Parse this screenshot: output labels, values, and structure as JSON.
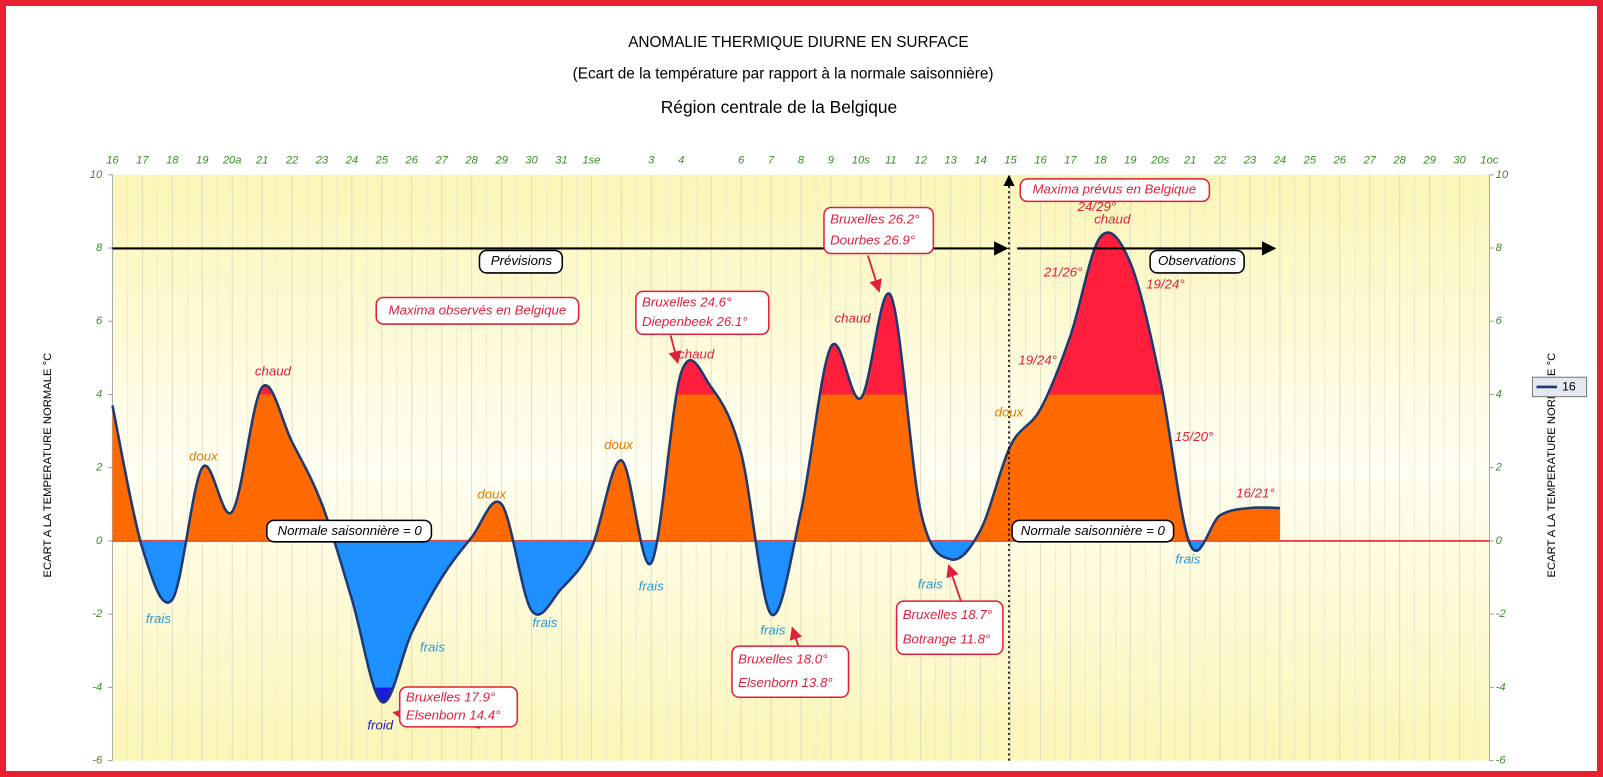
{
  "chart_data": {
    "type": "area",
    "title": "ANOMALIE THERMIQUE DIURNE EN SURFACE",
    "subtitle": "(Ecart de la température par rapport à la normale saisonnière)",
    "region": "Région centrale de la Belgique",
    "y_label": "ECART A LA TEMPERATURE NORMALE  °C",
    "y2_label": "ECART A LA TEMPERATURE NORMALE  °C",
    "categories": [
      "16",
      "17",
      "18",
      "19",
      "20a",
      "21",
      "22",
      "23",
      "24",
      "25",
      "26",
      "27",
      "28",
      "29",
      "30",
      "31",
      "1se",
      null,
      "3",
      "4",
      null,
      "6",
      "7",
      "8",
      "9",
      "10s",
      "11",
      "12",
      "13",
      "14",
      "15",
      "16",
      "17",
      "18",
      "19",
      "20s",
      "21",
      "22",
      "23",
      "24",
      "25",
      "26",
      "27",
      "28",
      "29",
      "30",
      "1oc"
    ],
    "series": [
      {
        "name": "16",
        "color": "#1f3a70",
        "values": [
          3.7,
          -0.2,
          -1.6,
          2.0,
          0.8,
          4.2,
          2.7,
          1.0,
          -1.6,
          -4.4,
          -2.5,
          -1.0,
          0.1,
          1.0,
          -1.9,
          -1.3,
          -0.2,
          2.2,
          -0.6,
          4.6,
          4.2,
          2.4,
          -2.0,
          0.8,
          5.3,
          3.9,
          6.7,
          0.8,
          -0.5,
          0.3,
          2.6,
          3.6,
          5.6,
          8.3,
          7.6,
          4.4,
          -0.1,
          0.7,
          0.9,
          0.9,
          null,
          null,
          null,
          null,
          null,
          null,
          null
        ]
      }
    ],
    "ylim": [
      -6,
      10
    ],
    "yticks": [
      -6,
      -4,
      -2,
      0,
      2,
      4,
      6,
      8,
      10
    ],
    "y2lim": [
      -6,
      10
    ],
    "y2ticks": [
      -6,
      -4,
      -2,
      0,
      2,
      4,
      6,
      8,
      10
    ],
    "zones": [
      {
        "from": -6,
        "to": -4,
        "color": "#1a1ae0"
      },
      {
        "from": -4,
        "to": 0,
        "color": "#1e90ff"
      },
      {
        "from": 0,
        "to": 4,
        "color": "#ff6a00"
      },
      {
        "from": 4,
        "to": 10,
        "color": "#ff1f3d"
      }
    ],
    "zero_line_color": "#e8202f",
    "annotations": [
      "chaud",
      "doux",
      "frais",
      "frais",
      "froid",
      "doux",
      "frais",
      "doux",
      "frais",
      "chaud",
      "frais",
      "chaud",
      "frais",
      "doux",
      "chaud",
      "frais",
      "24/29°",
      "21/26°",
      "19/24°",
      "19/24°",
      "15/20°",
      "16/21°",
      "Prévisions",
      "Observations",
      "Normale saisonnière = 0",
      "Normale saisonnière = 0",
      "Maxima observés en Belgique",
      "Maxima prévus en Belgique"
    ],
    "callouts": [
      [
        "Bruxelles 24.6°",
        "Diepenbeek 26.1°"
      ],
      [
        "Bruxelles 26.2°",
        "Dourbes 26.9°"
      ],
      [
        "Bruxelles 17.9°",
        "Elsenborn 14.4°"
      ],
      [
        "Bruxelles 18.0°",
        "Elsenborn 13.8°"
      ],
      [
        "Bruxelles 18.7°",
        "Botrange 11.8°"
      ]
    ]
  }
}
